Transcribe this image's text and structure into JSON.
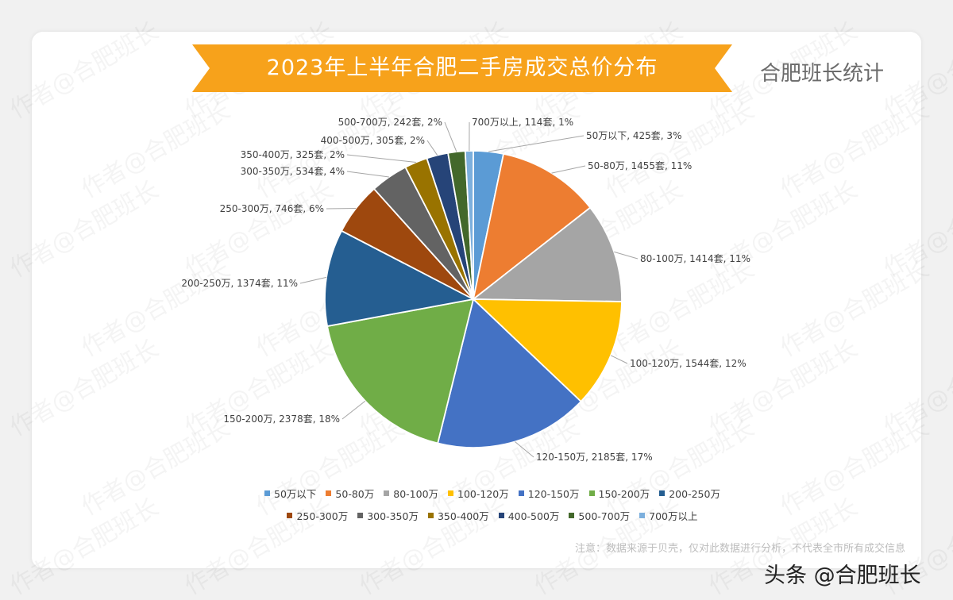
{
  "title": "2023年上半年合肥二手房成交总价分布",
  "source_label": "合肥班长统计",
  "note": "注意：数据来源于贝壳，仅对此数据进行分析，不代表全市所有成交信息",
  "footer_brand": "头条 @合肥班长",
  "watermark_text": "作者@合肥班长",
  "colors": {
    "banner": "#f7a21b",
    "background": "#f1f1f1"
  },
  "chart_data": {
    "type": "pie",
    "title": "2023年上半年合肥二手房成交总价分布",
    "categories": [
      "50万以下",
      "50-80万",
      "80-100万",
      "100-120万",
      "120-150万",
      "150-200万",
      "200-250万",
      "250-300万",
      "300-350万",
      "350-400万",
      "400-500万",
      "500-700万",
      "700万以上"
    ],
    "values": [
      425,
      1455,
      1414,
      1544,
      2185,
      2378,
      1374,
      746,
      534,
      325,
      305,
      242,
      114
    ],
    "percent_labels": [
      "3%",
      "11%",
      "11%",
      "12%",
      "17%",
      "18%",
      "11%",
      "6%",
      "4%",
      "2%",
      "2%",
      "2%",
      "1%"
    ],
    "data_labels": [
      "50万以下, 425套, 3%",
      "50-80万, 1455套, 11%",
      "80-100万, 1414套, 11%",
      "100-120万, 1544套, 12%",
      "120-150万, 2185套, 17%",
      "150-200万, 2378套, 18%",
      "200-250万, 1374套, 11%",
      "250-300万, 746套, 6%",
      "300-350万, 534套, 4%",
      "350-400万, 325套, 2%",
      "400-500万, 305套, 2%",
      "500-700万, 242套, 2%",
      "700万以上, 114套, 1%"
    ],
    "colors": [
      "#5b9bd5",
      "#ed7d31",
      "#a5a5a5",
      "#ffc000",
      "#4472c4",
      "#70ad47",
      "#255e91",
      "#9e480e",
      "#636363",
      "#997300",
      "#264478",
      "#43682b",
      "#7cafdd"
    ],
    "start_angle": "12 o'clock",
    "direction": "clockwise",
    "legend": {
      "placement": "bottom",
      "rows": [
        [
          "50万以下",
          "50-80万",
          "80-100万",
          "100-120万",
          "120-150万",
          "150-200万",
          "200-250万"
        ],
        [
          "250-300万",
          "300-350万",
          "350-400万",
          "400-500万",
          "500-700万",
          "700万以上"
        ]
      ]
    }
  }
}
